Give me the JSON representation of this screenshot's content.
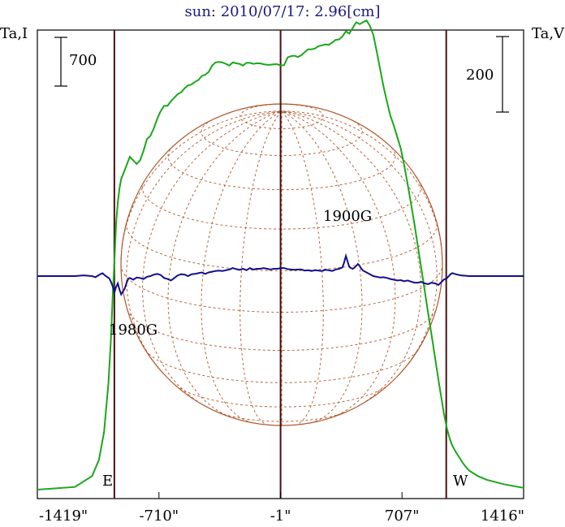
{
  "chart_data": {
    "type": "line",
    "title": "sun: 2010/07/17: 2.96[cm]",
    "left_axis_label": "Ta,I",
    "right_axis_label": "Ta,V",
    "left_scale_bar_label": "700",
    "right_scale_bar_label": "200",
    "x_tick_labels": [
      "-1419\"",
      "-710\"",
      "-1\"",
      "707\"",
      "1416\""
    ],
    "x_ticks": [
      -1419,
      -710,
      -1,
      707,
      1416
    ],
    "xlim": [
      -1419,
      1416
    ],
    "limb_markers": [
      -970,
      965
    ],
    "limb_labels": [
      "E",
      "W"
    ],
    "annotations": [
      {
        "text": "1980G",
        "x": -945
      },
      {
        "text": "1900G",
        "x": 390
      }
    ],
    "colors": {
      "title": "#1a1a80",
      "stokes_i": "#1aa81a",
      "stokes_v": "#10108c",
      "disk": "#b0562a",
      "limb_lines": "#4a1010",
      "frame": "#000000"
    },
    "series": [
      {
        "name": "I",
        "axis": "left",
        "x": [
          -1419,
          -1200,
          -1100,
          -1060,
          -1030,
          -1005,
          -990,
          -980,
          -970,
          -960,
          -950,
          -940,
          -930,
          -920,
          -900,
          -880,
          -860,
          -840,
          -820,
          -800,
          -780,
          -760,
          -740,
          -720,
          -700,
          -680,
          -660,
          -640,
          -620,
          -600,
          -580,
          -560,
          -540,
          -520,
          -500,
          -480,
          -460,
          -440,
          -420,
          -400,
          -380,
          -360,
          -340,
          -320,
          -300,
          -280,
          -260,
          -240,
          -220,
          -200,
          -180,
          -160,
          -140,
          -120,
          -100,
          -80,
          -60,
          -40,
          -20,
          0,
          20,
          40,
          60,
          80,
          100,
          120,
          140,
          160,
          180,
          200,
          220,
          240,
          260,
          280,
          300,
          320,
          340,
          360,
          380,
          400,
          420,
          440,
          460,
          480,
          500,
          520,
          540,
          560,
          580,
          600,
          620,
          640,
          660,
          680,
          700,
          720,
          740,
          760,
          780,
          800,
          820,
          840,
          860,
          880,
          900,
          920,
          940,
          950,
          960,
          970,
          980,
          990,
          1000,
          1020,
          1040,
          1060,
          1080,
          1100,
          1150,
          1200,
          1300,
          1416
        ],
        "y": [
          0,
          30,
          150,
          330,
          640,
          1170,
          1660,
          2140,
          2520,
          2950,
          3180,
          3340,
          3445,
          3490,
          3590,
          3690,
          3650,
          3610,
          3650,
          3755,
          3885,
          3920,
          4005,
          4110,
          4195,
          4255,
          4255,
          4305,
          4345,
          4385,
          4405,
          4450,
          4480,
          4490,
          4520,
          4540,
          4585,
          4600,
          4630,
          4700,
          4735,
          4740,
          4735,
          4720,
          4700,
          4735,
          4725,
          4720,
          4700,
          4730,
          4730,
          4720,
          4725,
          4725,
          4715,
          4710,
          4710,
          4715,
          4715,
          4700,
          4705,
          4790,
          4805,
          4810,
          4795,
          4815,
          4850,
          4880,
          4880,
          4890,
          4915,
          4925,
          4935,
          4930,
          4955,
          4985,
          4990,
          5025,
          5080,
          5055,
          5120,
          5180,
          5160,
          5180,
          5200,
          5140,
          5040,
          4855,
          4655,
          4460,
          4295,
          4140,
          4030,
          3905,
          3780,
          3595,
          3385,
          3165,
          2940,
          2695,
          2445,
          2200,
          1950,
          1710,
          1460,
          1210,
          980,
          860,
          760,
          670,
          600,
          540,
          490,
          420,
          360,
          300,
          250,
          210,
          150,
          110,
          60,
          20
        ]
      },
      {
        "name": "V",
        "axis": "right",
        "x": [
          -1419,
          -1300,
          -1200,
          -1150,
          -1100,
          -1080,
          -1060,
          -1040,
          -1020,
          -1000,
          -990,
          -980,
          -970,
          -960,
          -950,
          -940,
          -930,
          -920,
          -910,
          -900,
          -890,
          -880,
          -860,
          -840,
          -820,
          -800,
          -780,
          -760,
          -740,
          -720,
          -700,
          -680,
          -660,
          -640,
          -620,
          -600,
          -580,
          -560,
          -540,
          -520,
          -500,
          -480,
          -460,
          -440,
          -420,
          -400,
          -380,
          -360,
          -340,
          -320,
          -300,
          -280,
          -260,
          -240,
          -220,
          -200,
          -180,
          -160,
          -140,
          -120,
          -100,
          -80,
          -60,
          -40,
          -20,
          0,
          20,
          40,
          60,
          80,
          100,
          120,
          140,
          160,
          180,
          200,
          220,
          240,
          260,
          280,
          300,
          320,
          340,
          360,
          370,
          380,
          390,
          400,
          410,
          420,
          430,
          440,
          450,
          460,
          470,
          480,
          500,
          520,
          540,
          560,
          580,
          600,
          620,
          640,
          660,
          680,
          700,
          720,
          740,
          760,
          780,
          800,
          820,
          840,
          860,
          880,
          900,
          920,
          940,
          950,
          960,
          970,
          980,
          990,
          1000,
          1020,
          1050,
          1100,
          1200,
          1300,
          1416
        ],
        "y": [
          0,
          0,
          0,
          2,
          0,
          -3,
          3,
          8,
          0,
          -6,
          -15,
          -28,
          -45,
          -30,
          -20,
          -37,
          -50,
          -42,
          -35,
          -20,
          -8,
          -5,
          -10,
          -4,
          -5,
          -8,
          -2,
          0,
          4,
          6,
          3,
          -5,
          -8,
          -12,
          -5,
          2,
          5,
          4,
          0,
          5,
          6,
          8,
          10,
          6,
          10,
          12,
          14,
          15,
          14,
          16,
          18,
          22,
          19,
          17,
          20,
          16,
          22,
          18,
          20,
          20,
          22,
          20,
          18,
          20,
          20,
          22,
          22,
          19,
          18,
          17,
          18,
          18,
          15,
          16,
          14,
          16,
          15,
          14,
          17,
          16,
          14,
          18,
          20,
          24,
          38,
          55,
          40,
          25,
          22,
          20,
          23,
          28,
          33,
          28,
          20,
          15,
          10,
          5,
          0,
          -2,
          -4,
          -3,
          -5,
          -8,
          -10,
          -12,
          -11,
          -14,
          -12,
          -15,
          -18,
          -18,
          -16,
          -20,
          -22,
          -18,
          -20,
          -24,
          -15,
          -10,
          -8,
          -5,
          0,
          5,
          8,
          5,
          2,
          0,
          0,
          0,
          0
        ]
      }
    ],
    "y_left_per_px": 9.0,
    "y_right_per_px": 2.22
  }
}
